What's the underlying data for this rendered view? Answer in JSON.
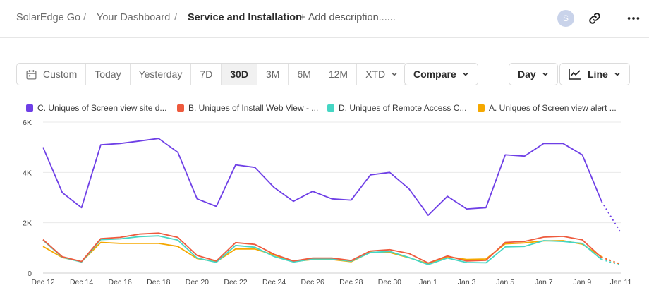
{
  "breadcrumb": {
    "app": "SolarEdge Go",
    "separator": "/",
    "dashboard": "Your Dashboard",
    "current": "Service and Installation",
    "add_description": "+ Add description......"
  },
  "header": {
    "avatar_initial": "S",
    "link_icon": "link-icon",
    "more_icon": "more-icon"
  },
  "toolbar": {
    "ranges": [
      "Custom",
      "Today",
      "Yesterday",
      "7D",
      "30D",
      "3M",
      "6M",
      "12M",
      "XTD"
    ],
    "active_range": "30D",
    "compare_label": "Compare",
    "granularity_label": "Day",
    "chart_type_label": "Line"
  },
  "colors": {
    "purple": "#6e3fe6",
    "red": "#ee5a3d",
    "teal": "#45d6c4",
    "orange": "#f5a800"
  },
  "chart_data": {
    "type": "line",
    "title": "",
    "xlabel": "",
    "ylabel": "",
    "ylim": [
      0,
      6000
    ],
    "y_ticks": [
      "0",
      "2K",
      "4K",
      "6K"
    ],
    "y_tick_values": [
      0,
      2000,
      4000,
      6000
    ],
    "x": [
      "Dec 12",
      "Dec 13",
      "Dec 14",
      "Dec 15",
      "Dec 16",
      "Dec 17",
      "Dec 18",
      "Dec 19",
      "Dec 20",
      "Dec 21",
      "Dec 22",
      "Dec 23",
      "Dec 24",
      "Dec 25",
      "Dec 26",
      "Dec 27",
      "Dec 28",
      "Dec 29",
      "Dec 30",
      "Dec 31",
      "Jan 1",
      "Jan 2",
      "Jan 3",
      "Jan 4",
      "Jan 5",
      "Jan 6",
      "Jan 7",
      "Jan 8",
      "Jan 9",
      "Jan 10",
      "Jan 11"
    ],
    "x_tick_labels": [
      "Dec 12",
      "Dec 14",
      "Dec 16",
      "Dec 18",
      "Dec 20",
      "Dec 22",
      "Dec 24",
      "Dec 26",
      "Dec 28",
      "Dec 30",
      "Jan 1",
      "Jan 3",
      "Jan 5",
      "Jan 7",
      "Jan 9",
      "Jan 11"
    ],
    "partial_last_point": true,
    "series": [
      {
        "name": "C. Uniques of Screen view site d...",
        "color": "#6e3fe6",
        "values": [
          5000,
          3200,
          2600,
          5100,
          5150,
          5250,
          5350,
          4800,
          2950,
          2650,
          4300,
          4200,
          3400,
          2850,
          3250,
          2950,
          2900,
          3900,
          4000,
          3350,
          2300,
          3050,
          2550,
          2600,
          4700,
          4650,
          5150,
          5150,
          4700,
          2850,
          1600
        ]
      },
      {
        "name": "B. Uniques of Install Web View - ...",
        "color": "#ee5a3d",
        "values": [
          1330,
          650,
          460,
          1370,
          1420,
          1550,
          1590,
          1420,
          700,
          480,
          1210,
          1140,
          750,
          480,
          600,
          600,
          500,
          880,
          930,
          780,
          400,
          680,
          480,
          510,
          1220,
          1260,
          1430,
          1460,
          1320,
          620,
          360
        ]
      },
      {
        "name": "D. Uniques of Remote Access C...",
        "color": "#45d6c4",
        "values": [
          1310,
          630,
          440,
          1330,
          1360,
          1450,
          1480,
          1310,
          600,
          430,
          1100,
          1030,
          660,
          440,
          560,
          560,
          470,
          820,
          860,
          620,
          340,
          600,
          420,
          410,
          1040,
          1060,
          1290,
          1260,
          1180,
          540,
          320
        ]
      },
      {
        "name": "A. Uniques of Screen view alert ...",
        "color": "#f5a800",
        "values": [
          1060,
          620,
          450,
          1220,
          1180,
          1180,
          1180,
          1060,
          580,
          450,
          960,
          960,
          720,
          460,
          540,
          540,
          450,
          830,
          820,
          610,
          370,
          650,
          540,
          560,
          1160,
          1200,
          1280,
          1290,
          1150,
          650,
          340
        ]
      }
    ]
  }
}
